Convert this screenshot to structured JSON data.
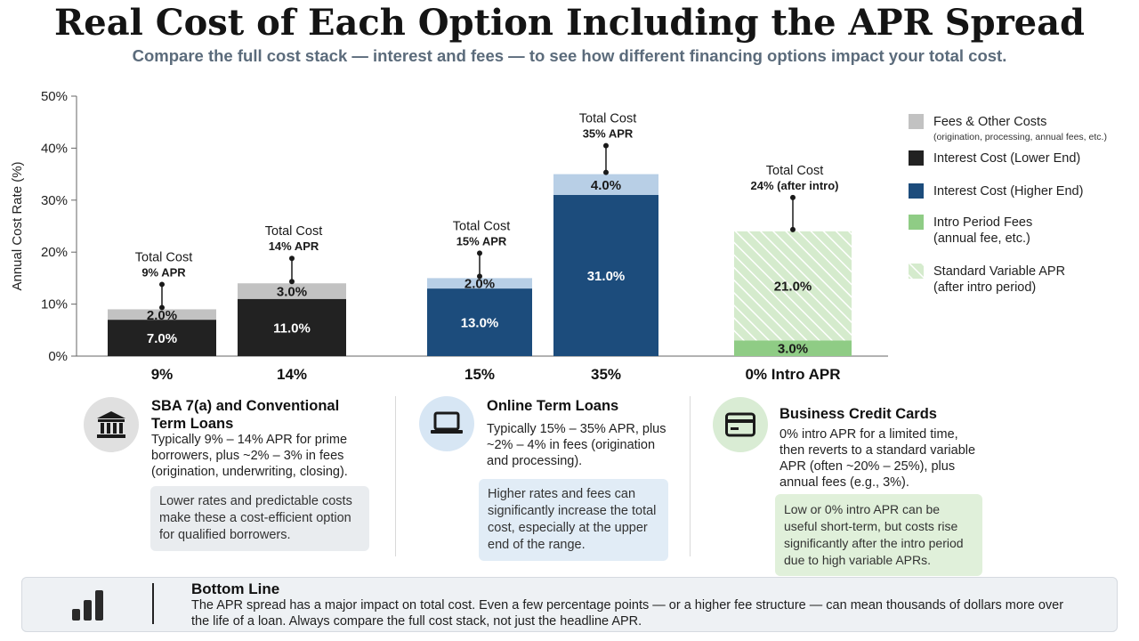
{
  "header": {
    "title": "Real Cost of Each Option Including the APR Spread",
    "subtitle": "Compare the full cost stack — interest and fees — to see how different financing options impact your total cost."
  },
  "colors": {
    "fees": "#c2c2c2",
    "interest_low": "#222222",
    "interest_high": "#1c4c7c",
    "fees_light_blue": "#b8cfe6",
    "intro_fees": "#8fcc85",
    "variable_apr": "#d5ebcd",
    "variable_apr_stripe": "#ffffff"
  },
  "chart_data": {
    "type": "bar",
    "stacked": true,
    "ylabel": "Annual Cost Rate (%)",
    "ylim": [
      0,
      50
    ],
    "yticks": [
      "0%",
      "10%",
      "20%",
      "30%",
      "40%",
      "50%"
    ],
    "categories": [
      "9%",
      "14%",
      "15%",
      "35%",
      "0% Intro APR"
    ],
    "bars": [
      {
        "category": "9%",
        "segments": [
          {
            "series": "Interest Cost (Lower End)",
            "value": 7.0,
            "label": "7.0%"
          },
          {
            "series": "Fees & Other Costs",
            "value": 2.0,
            "label": "2.0%"
          }
        ],
        "total_label_1": "Total Cost",
        "total_label_2": "9% APR"
      },
      {
        "category": "14%",
        "segments": [
          {
            "series": "Interest Cost (Lower End)",
            "value": 11.0,
            "label": "11.0%"
          },
          {
            "series": "Fees & Other Costs",
            "value": 3.0,
            "label": "3.0%"
          }
        ],
        "total_label_1": "Total Cost",
        "total_label_2": "14% APR"
      },
      {
        "category": "15%",
        "segments": [
          {
            "series": "Interest Cost (Higher End)",
            "value": 13.0,
            "label": "13.0%"
          },
          {
            "series": "Fees & Other Costs",
            "value": 2.0,
            "label": "2.0%"
          }
        ],
        "total_label_1": "Total Cost",
        "total_label_2": "15% APR"
      },
      {
        "category": "35%",
        "segments": [
          {
            "series": "Interest Cost (Higher End)",
            "value": 31.0,
            "label": "31.0%"
          },
          {
            "series": "Fees & Other Costs",
            "value": 4.0,
            "label": "4.0%"
          }
        ],
        "total_label_1": "Total Cost",
        "total_label_2": "35% APR"
      },
      {
        "category": "0% Intro APR",
        "segments": [
          {
            "series": "Intro Period Fees",
            "value": 3.0,
            "label": "3.0%"
          },
          {
            "series": "Standard Variable APR",
            "value": 21.0,
            "label": "21.0%"
          }
        ],
        "total_label_1": "Total Cost",
        "total_label_2": "24% (after intro)"
      }
    ],
    "legend": [
      {
        "name": "Fees & Other Costs",
        "sub": "(origination, processing, annual fees, etc.)"
      },
      {
        "name": "Interest Cost (Lower End)",
        "sub": ""
      },
      {
        "name": "Interest Cost (Higher End)",
        "sub": ""
      },
      {
        "name": "Intro Period Fees",
        "sub": "(annual fee, etc.)"
      },
      {
        "name": "Standard Variable APR",
        "sub": "(after intro period)"
      }
    ],
    "legend_position": "right",
    "grid": false
  },
  "cards": [
    {
      "title": "SBA 7(a) and Conventional Term Loans",
      "desc": "Typically 9% – 14% APR for prime borrowers, plus ~2% – 3% in fees (origination, underwriting, closing).",
      "note": "Lower rates and predictable costs make these a cost-efficient option for qualified borrowers.",
      "icon": "bank-icon"
    },
    {
      "title": "Online Term Loans",
      "desc": "Typically 15% – 35% APR, plus ~2% – 4% in fees (origination and processing).",
      "note": "Higher rates and fees can significantly increase the total cost, especially at the upper end of the range.",
      "icon": "laptop-icon"
    },
    {
      "title": "Business Credit Cards",
      "desc": "0% intro APR for a limited time, then reverts to a standard variable APR (often ~20% – 25%), plus annual fees (e.g., 3%).",
      "note": "Low or 0% intro APR can be useful short-term, but costs rise significantly after the intro period due to high variable APRs.",
      "icon": "credit-card-icon"
    }
  ],
  "bottom_line": {
    "title": "Bottom Line",
    "text": "The APR spread has a major impact on total cost. Even a few percentage points — or a higher fee structure — can mean thousands of dollars more over the life of a loan. Always compare the full cost stack, not just the headline APR.",
    "icon": "bar-chart-icon"
  }
}
